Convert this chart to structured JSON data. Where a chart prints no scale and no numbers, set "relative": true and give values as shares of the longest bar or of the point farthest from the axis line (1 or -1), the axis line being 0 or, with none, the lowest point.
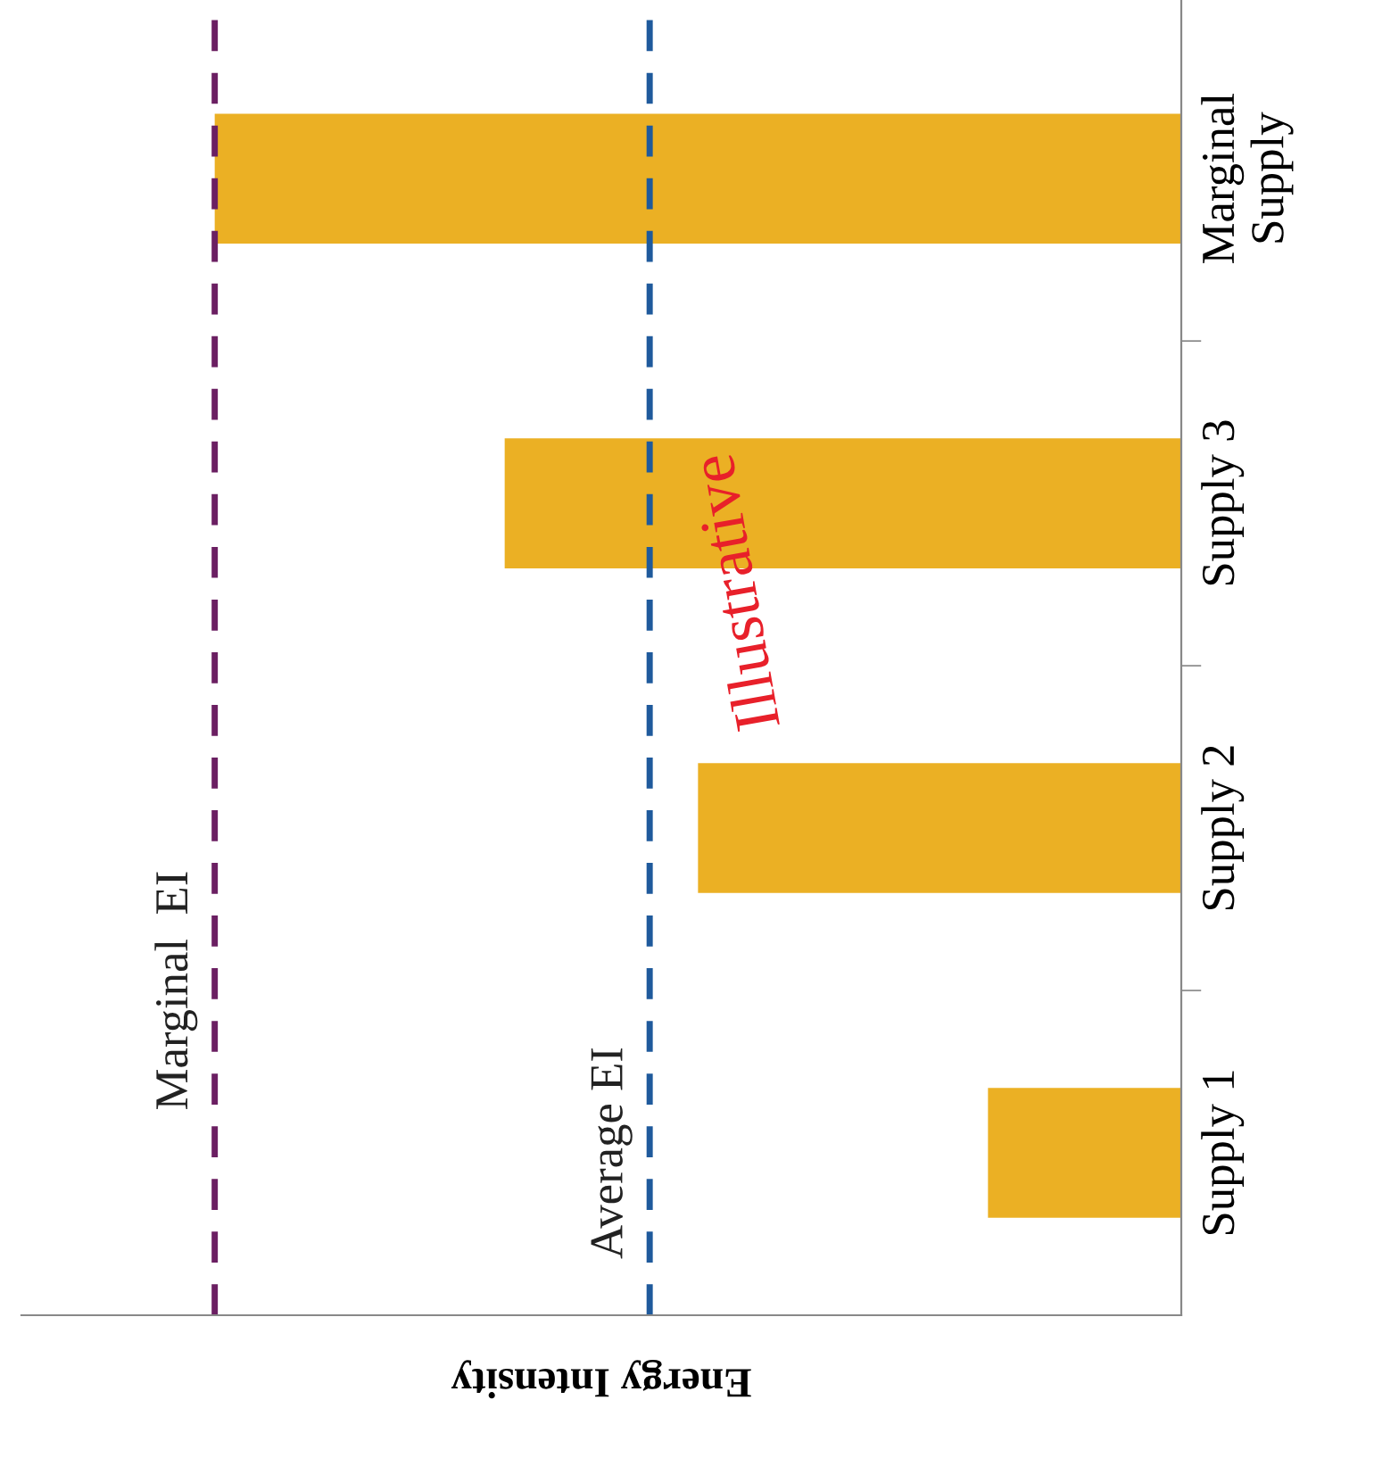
{
  "chart_data": {
    "type": "bar",
    "orientation": "horizontal",
    "relative": true,
    "xlabel": "Energy Intensity",
    "categories": [
      "Marginal\nSupply",
      "Supply 3",
      "Supply 2",
      "Supply 1"
    ],
    "series": [
      {
        "color": "#ebb024",
        "values": [
          1.0,
          0.7,
          0.5,
          0.2
        ]
      }
    ],
    "ref_lines": [
      {
        "axis": "x",
        "value": 1.0,
        "label": "Marginal  EI",
        "color": "#6b1f62",
        "line_style": "dashed"
      },
      {
        "axis": "x",
        "value": 0.55,
        "label": "Average EI",
        "color": "#1f5a9c",
        "line_style": "dashed"
      }
    ],
    "annotations": [
      "Illustrative"
    ],
    "grid": false,
    "legend": false
  }
}
